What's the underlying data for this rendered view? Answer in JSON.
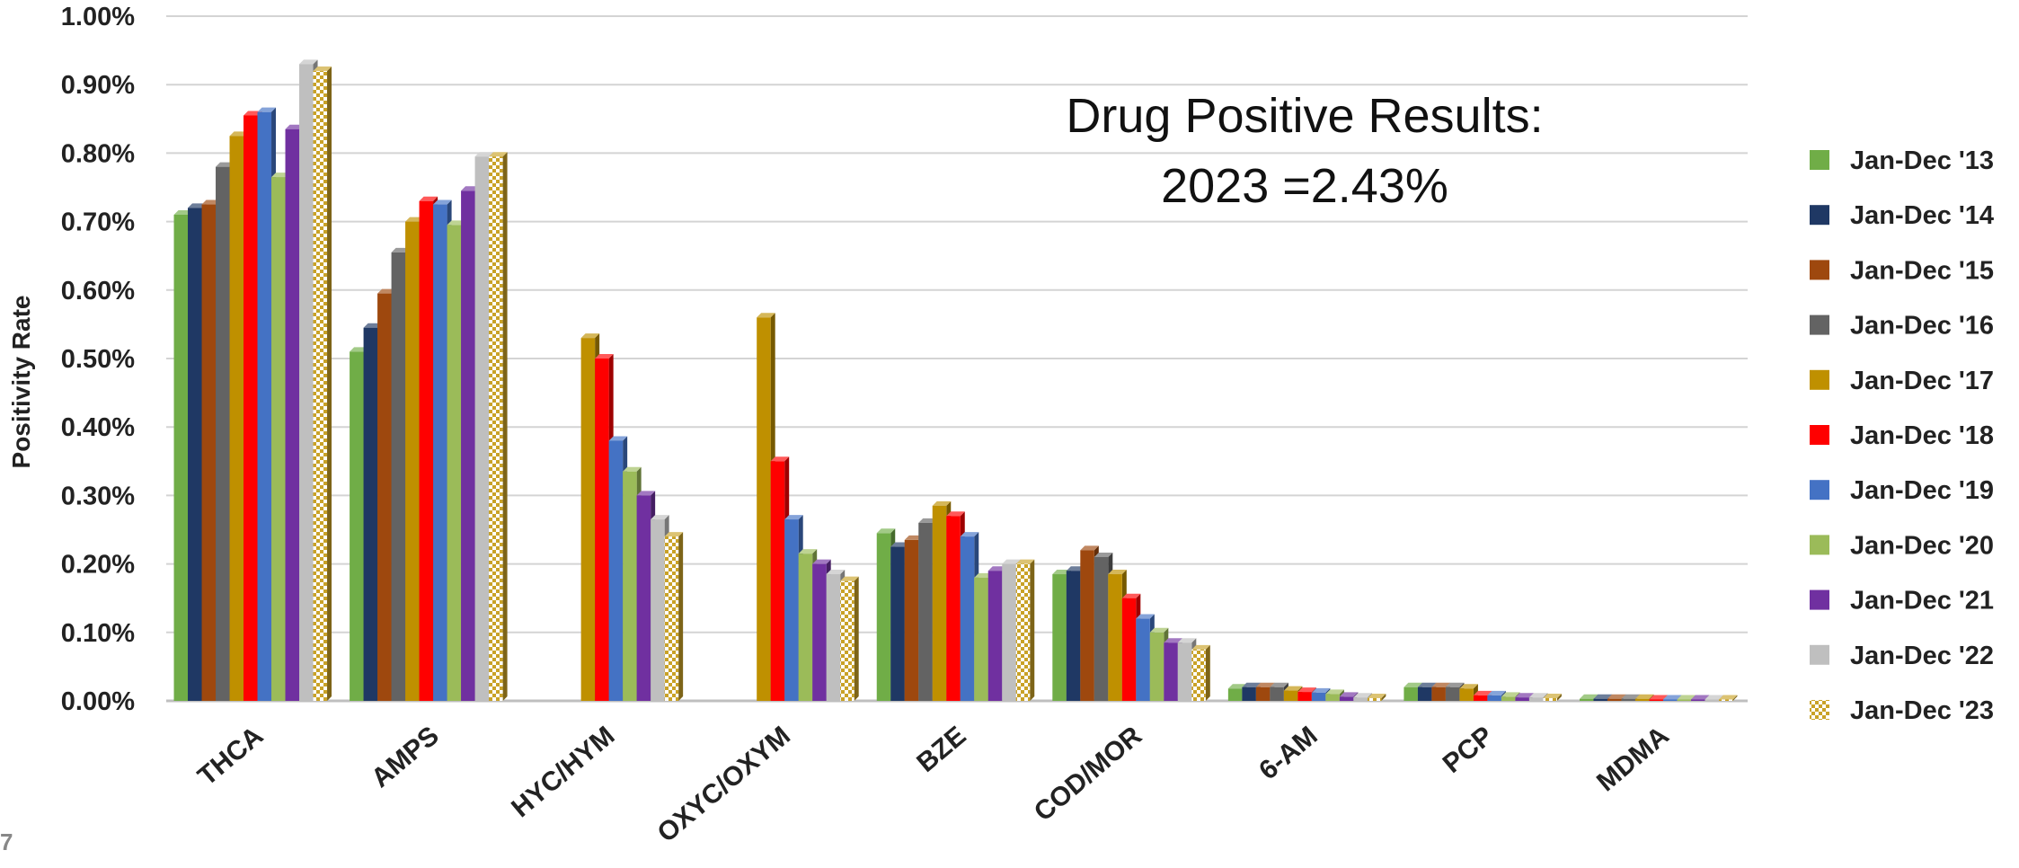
{
  "slide": {
    "page_number": "7"
  },
  "chart_data": {
    "type": "bar",
    "ylabel": "Positivity Rate",
    "ylim": [
      0,
      1.0
    ],
    "y_ticks": [
      "0.00%",
      "0.10%",
      "0.20%",
      "0.30%",
      "0.40%",
      "0.50%",
      "0.60%",
      "0.70%",
      "0.80%",
      "0.90%",
      "1.00%"
    ],
    "grid": true,
    "legend_position": "right",
    "annotation": [
      "Drug Positive Results:",
      "2023 =2.43%"
    ],
    "categories": [
      "THCA",
      "AMPS",
      "HYC/HYM",
      "OXYC/OXYM",
      "BZE",
      "COD/MOR",
      "6-AM",
      "PCP",
      "MDMA"
    ],
    "series": [
      {
        "name": "Jan-Dec '13",
        "color": "#70ad47",
        "values": [
          0.71,
          0.51,
          null,
          null,
          0.245,
          0.185,
          0.018,
          0.02,
          0.003
        ]
      },
      {
        "name": "Jan-Dec '14",
        "color": "#1f3864",
        "values": [
          0.72,
          0.545,
          null,
          null,
          0.225,
          0.19,
          0.02,
          0.02,
          0.003
        ]
      },
      {
        "name": "Jan-Dec '15",
        "color": "#9e480e",
        "values": [
          0.725,
          0.595,
          null,
          null,
          0.235,
          0.22,
          0.02,
          0.02,
          0.003
        ]
      },
      {
        "name": "Jan-Dec '16",
        "color": "#636363",
        "values": [
          0.78,
          0.655,
          null,
          null,
          0.26,
          0.21,
          0.02,
          0.02,
          0.003
        ]
      },
      {
        "name": "Jan-Dec '17",
        "color": "#bf9000",
        "values": [
          0.825,
          0.7,
          0.53,
          0.56,
          0.285,
          0.185,
          0.015,
          0.018,
          0.003
        ]
      },
      {
        "name": "Jan-Dec '18",
        "color": "#ff0000",
        "values": [
          0.855,
          0.73,
          0.5,
          0.35,
          0.27,
          0.15,
          0.013,
          0.008,
          0.002
        ]
      },
      {
        "name": "Jan-Dec '19",
        "color": "#4472c4",
        "values": [
          0.86,
          0.725,
          0.38,
          0.265,
          0.24,
          0.12,
          0.012,
          0.008,
          0.002
        ]
      },
      {
        "name": "Jan-Dec '20",
        "color": "#9bbb59",
        "values": [
          0.765,
          0.695,
          0.335,
          0.215,
          0.18,
          0.1,
          0.01,
          0.006,
          0.002
        ]
      },
      {
        "name": "Jan-Dec '21",
        "color": "#7030a0",
        "values": [
          0.835,
          0.745,
          0.3,
          0.2,
          0.19,
          0.085,
          0.006,
          0.005,
          0.002
        ]
      },
      {
        "name": "Jan-Dec '22",
        "color": "#bfbfbf",
        "values": [
          0.93,
          0.795,
          0.265,
          0.185,
          0.2,
          0.085,
          0.005,
          0.005,
          0.002
        ]
      },
      {
        "name": "Jan-Dec '23",
        "color": "#c9a227",
        "pattern": "checker",
        "values": [
          0.92,
          0.795,
          0.24,
          0.175,
          0.2,
          0.075,
          0.004,
          0.004,
          0.002
        ]
      }
    ]
  }
}
